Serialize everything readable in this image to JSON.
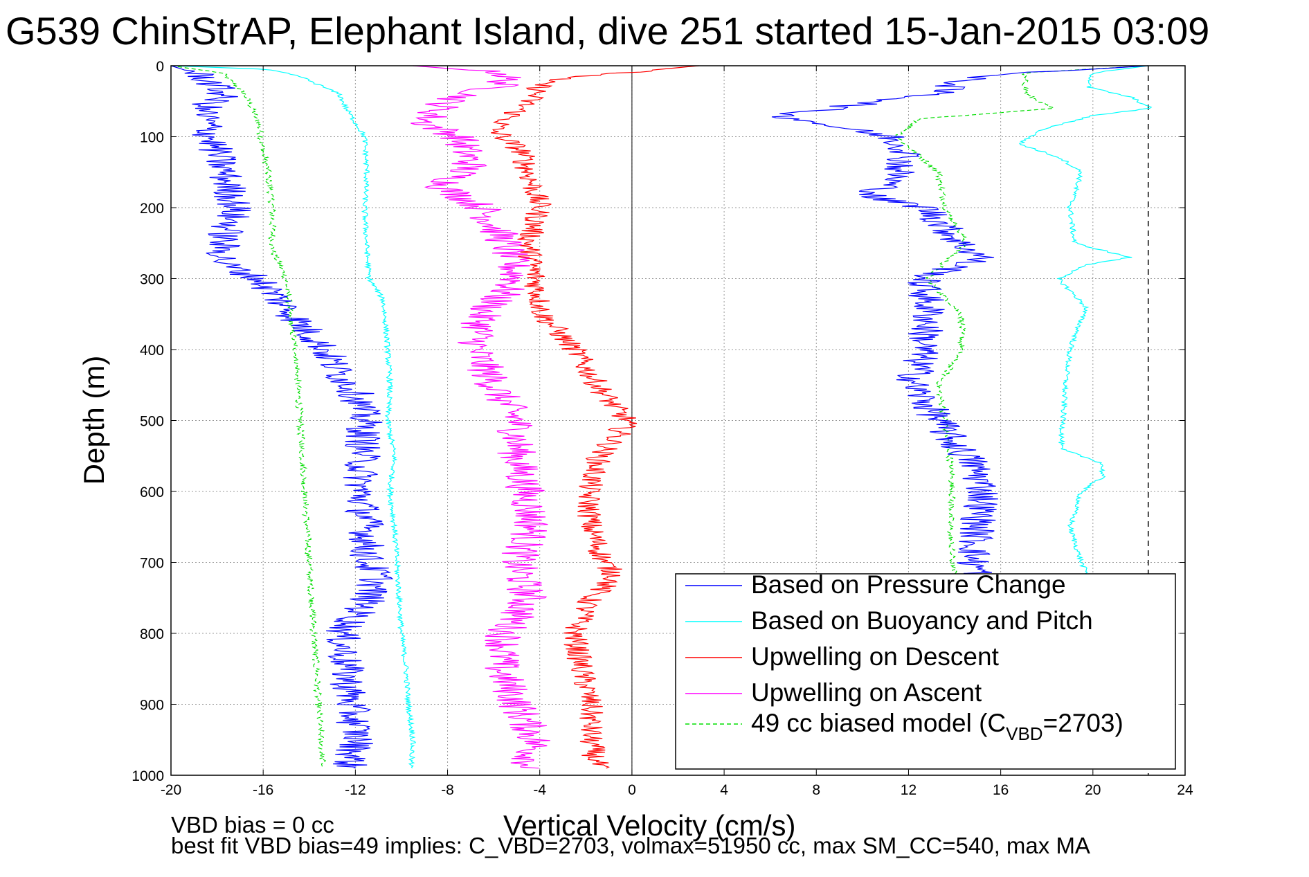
{
  "chart_data": {
    "type": "line",
    "title": "G539 ChinStrAP, Elephant Island, dive 251 started 15-Jan-2015 03:09",
    "xlabel": "Vertical Velocity (cm/s)",
    "ylabel": "Depth (m)",
    "xlim": [
      -20,
      24
    ],
    "ylim": [
      0,
      1000
    ],
    "y_reversed": true,
    "grid": true,
    "legend_placement": "bottom-right",
    "xticks": [
      -20,
      -16,
      -12,
      -8,
      -4,
      0,
      4,
      8,
      12,
      16,
      20,
      24
    ],
    "yticks": [
      0,
      100,
      200,
      300,
      400,
      500,
      600,
      700,
      800,
      900,
      1000
    ],
    "reference_lines": {
      "zero_velocity_x": 0,
      "dashed_x": 22.4
    },
    "series": [
      {
        "name": "Based on Pressure Change",
        "color": "#0000ff",
        "noise": 0.8,
        "descent": [
          [
            0,
            -20
          ],
          [
            5,
            -19.5
          ],
          [
            15,
            -18.6
          ],
          [
            40,
            -17.7
          ],
          [
            60,
            -18.6
          ],
          [
            100,
            -18.3
          ],
          [
            150,
            -17.7
          ],
          [
            200,
            -17.2
          ],
          [
            250,
            -17.8
          ],
          [
            280,
            -17.7
          ],
          [
            300,
            -16.2
          ],
          [
            330,
            -15.3
          ],
          [
            360,
            -14.5
          ],
          [
            380,
            -13.9
          ],
          [
            400,
            -13.3
          ],
          [
            430,
            -12.8
          ],
          [
            460,
            -12.0
          ],
          [
            500,
            -11.6
          ],
          [
            550,
            -11.7
          ],
          [
            600,
            -11.8
          ],
          [
            650,
            -11.5
          ],
          [
            700,
            -11.5
          ],
          [
            720,
            -11.0
          ],
          [
            760,
            -11.6
          ],
          [
            800,
            -12.6
          ],
          [
            850,
            -12.4
          ],
          [
            900,
            -12.2
          ],
          [
            950,
            -11.9
          ],
          [
            990,
            -12.3
          ]
        ],
        "ascent": [
          [
            0,
            22.4
          ],
          [
            15,
            14.8
          ],
          [
            40,
            13.1
          ],
          [
            70,
            6.5
          ],
          [
            90,
            9.5
          ],
          [
            100,
            11.2
          ],
          [
            120,
            12.0
          ],
          [
            160,
            11.4
          ],
          [
            185,
            10.3
          ],
          [
            200,
            12.8
          ],
          [
            250,
            14.2
          ],
          [
            270,
            15.2
          ],
          [
            300,
            12.6
          ],
          [
            350,
            12.9
          ],
          [
            400,
            12.6
          ],
          [
            450,
            12.2
          ],
          [
            500,
            13.3
          ],
          [
            530,
            13.9
          ],
          [
            560,
            14.8
          ],
          [
            600,
            15.3
          ],
          [
            650,
            15.0
          ],
          [
            700,
            14.8
          ],
          [
            720,
            15.2
          ]
        ]
      },
      {
        "name": "Based on Buoyancy and Pitch",
        "color": "#00ffff",
        "noise": 0.12,
        "descent": [
          [
            0,
            -20
          ],
          [
            5,
            -15.8
          ],
          [
            15,
            -14.4
          ],
          [
            40,
            -12.7
          ],
          [
            60,
            -12.4
          ],
          [
            100,
            -11.6
          ],
          [
            150,
            -11.5
          ],
          [
            200,
            -11.6
          ],
          [
            260,
            -11.5
          ],
          [
            300,
            -11.4
          ],
          [
            330,
            -10.8
          ],
          [
            360,
            -10.7
          ],
          [
            400,
            -10.6
          ],
          [
            450,
            -10.5
          ],
          [
            500,
            -10.6
          ],
          [
            550,
            -10.3
          ],
          [
            600,
            -10.5
          ],
          [
            650,
            -10.3
          ],
          [
            700,
            -10.2
          ],
          [
            750,
            -10.1
          ],
          [
            800,
            -10.0
          ],
          [
            850,
            -9.8
          ],
          [
            900,
            -9.7
          ],
          [
            950,
            -9.5
          ],
          [
            990,
            -9.6
          ]
        ],
        "ascent": [
          [
            0,
            22.4
          ],
          [
            10,
            20.0
          ],
          [
            30,
            19.8
          ],
          [
            45,
            21.7
          ],
          [
            60,
            22.5
          ],
          [
            70,
            20.0
          ],
          [
            90,
            17.8
          ],
          [
            110,
            16.8
          ],
          [
            130,
            18.6
          ],
          [
            150,
            19.5
          ],
          [
            170,
            19.3
          ],
          [
            200,
            19.0
          ],
          [
            250,
            19.2
          ],
          [
            270,
            21.6
          ],
          [
            280,
            19.8
          ],
          [
            300,
            18.5
          ],
          [
            340,
            19.7
          ],
          [
            400,
            19.0
          ],
          [
            450,
            18.8
          ],
          [
            500,
            18.7
          ],
          [
            540,
            18.6
          ],
          [
            560,
            20.4
          ],
          [
            580,
            20.4
          ],
          [
            600,
            19.5
          ],
          [
            650,
            19.0
          ],
          [
            700,
            19.5
          ],
          [
            720,
            19.8
          ]
        ]
      },
      {
        "name": "Upwelling on Descent",
        "color": "#ff0000",
        "noise": 0.55,
        "descent": [
          [
            0,
            2.9
          ],
          [
            20,
            -3.8
          ],
          [
            40,
            -4.2
          ],
          [
            60,
            -4.8
          ],
          [
            90,
            -6.0
          ],
          [
            120,
            -4.8
          ],
          [
            150,
            -4.5
          ],
          [
            200,
            -4.0
          ],
          [
            250,
            -4.5
          ],
          [
            300,
            -4.2
          ],
          [
            350,
            -3.9
          ],
          [
            400,
            -2.5
          ],
          [
            450,
            -1.5
          ],
          [
            480,
            -0.8
          ],
          [
            500,
            -0.2
          ],
          [
            520,
            -0.6
          ],
          [
            550,
            -1.4
          ],
          [
            600,
            -1.9
          ],
          [
            650,
            -1.8
          ],
          [
            700,
            -1.2
          ],
          [
            720,
            -0.7
          ],
          [
            750,
            -1.8
          ],
          [
            800,
            -2.5
          ],
          [
            850,
            -2.2
          ],
          [
            900,
            -1.8
          ],
          [
            950,
            -1.8
          ],
          [
            990,
            -1.5
          ]
        ]
      },
      {
        "name": "Upwelling on Ascent",
        "color": "#ff00ff",
        "noise": 0.85,
        "descent": [
          [
            0,
            -9.5
          ],
          [
            10,
            -5.5
          ],
          [
            25,
            -5.5
          ],
          [
            50,
            -8.0
          ],
          [
            80,
            -9.0
          ],
          [
            100,
            -7.5
          ],
          [
            140,
            -7.0
          ],
          [
            170,
            -8.2
          ],
          [
            200,
            -6.5
          ],
          [
            250,
            -5.5
          ],
          [
            300,
            -5.0
          ],
          [
            350,
            -6.5
          ],
          [
            400,
            -6.8
          ],
          [
            450,
            -6.0
          ],
          [
            500,
            -5.0
          ],
          [
            550,
            -5.0
          ],
          [
            600,
            -4.6
          ],
          [
            650,
            -4.3
          ],
          [
            700,
            -5.0
          ],
          [
            750,
            -4.5
          ],
          [
            800,
            -5.5
          ],
          [
            850,
            -5.7
          ],
          [
            900,
            -5.0
          ],
          [
            950,
            -4.2
          ],
          [
            990,
            -4.5
          ]
        ]
      },
      {
        "name": "49 cc biased model (C",
        "name_subscript": "VBD",
        "name_suffix": "=2703)",
        "color": "#00dd00",
        "dashed": true,
        "noise": 0.15,
        "descent": [
          [
            0,
            -20
          ],
          [
            10,
            -17.8
          ],
          [
            40,
            -16.8
          ],
          [
            80,
            -16.2
          ],
          [
            120,
            -16.0
          ],
          [
            150,
            -15.8
          ],
          [
            200,
            -15.6
          ],
          [
            260,
            -15.6
          ],
          [
            300,
            -15.0
          ],
          [
            360,
            -14.8
          ],
          [
            400,
            -14.6
          ],
          [
            450,
            -14.5
          ],
          [
            500,
            -14.4
          ],
          [
            550,
            -14.3
          ],
          [
            600,
            -14.2
          ],
          [
            650,
            -14.1
          ],
          [
            700,
            -14.0
          ],
          [
            750,
            -13.9
          ],
          [
            800,
            -13.8
          ],
          [
            850,
            -13.7
          ],
          [
            900,
            -13.6
          ],
          [
            950,
            -13.5
          ],
          [
            990,
            -13.4
          ]
        ],
        "ascent": [
          [
            0,
            22.4
          ],
          [
            10,
            17.0
          ],
          [
            40,
            17.1
          ],
          [
            60,
            18.2
          ],
          [
            75,
            12.5
          ],
          [
            100,
            11.5
          ],
          [
            150,
            13.3
          ],
          [
            200,
            13.6
          ],
          [
            250,
            14.5
          ],
          [
            300,
            12.8
          ],
          [
            350,
            14.3
          ],
          [
            400,
            14.3
          ],
          [
            450,
            13.3
          ],
          [
            500,
            13.6
          ],
          [
            550,
            13.8
          ],
          [
            600,
            13.9
          ],
          [
            650,
            13.8
          ],
          [
            700,
            13.9
          ],
          [
            720,
            14.0
          ]
        ]
      }
    ],
    "footer_lines": [
      "VBD bias = 0 cc",
      "best fit VBD bias=49 implies: C_VBD=2703, volmax=51950 cc, max SM_CC=540, max MA"
    ]
  }
}
